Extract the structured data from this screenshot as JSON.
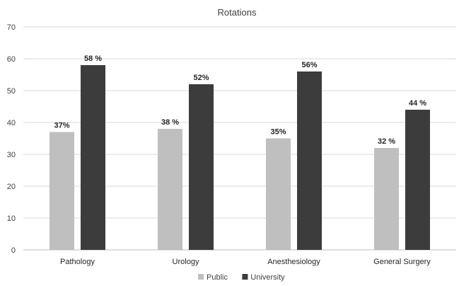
{
  "chart_data": {
    "type": "bar",
    "title": "Rotations",
    "xlabel": "",
    "ylabel": "",
    "categories": [
      "Pathology",
      "Urology",
      "Anesthesiology",
      "General Surgery"
    ],
    "series": [
      {
        "name": "Public",
        "color": "#bfbfbf",
        "values": [
          37,
          38,
          35,
          32
        ],
        "labels": [
          "37%",
          "38 %",
          "35%",
          "32 %"
        ]
      },
      {
        "name": "University",
        "color": "#3c3c3c",
        "values": [
          58,
          52,
          56,
          44
        ],
        "labels": [
          "58 %",
          "52%",
          "56%",
          "44 %"
        ]
      }
    ],
    "ylim": [
      0,
      70
    ],
    "yticks": [
      0,
      10,
      20,
      30,
      40,
      50,
      60,
      70
    ],
    "grid": true,
    "legend_position": "bottom"
  }
}
